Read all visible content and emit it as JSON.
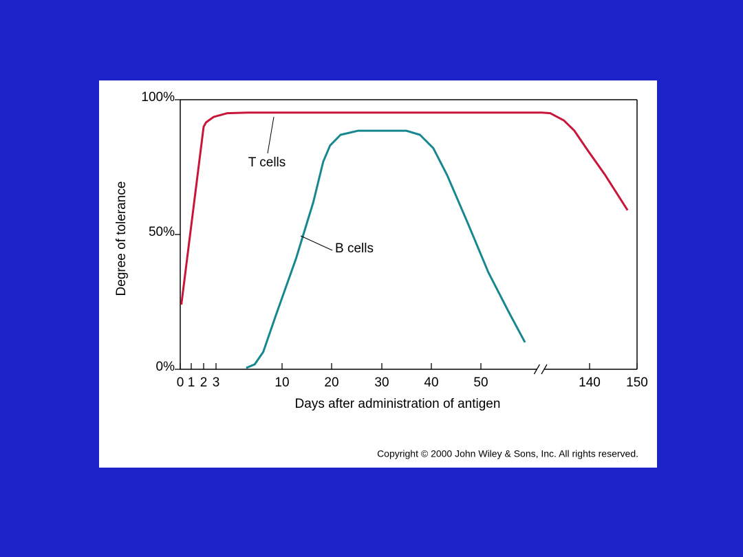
{
  "chart_data": {
    "type": "line",
    "y_axis_label": "Degree of tolerance",
    "x_axis_label": "Days after administration of antigen",
    "copyright": "Copyright © 2000 John Wiley & Sons, Inc.  All rights reserved.",
    "xlim": [
      0,
      150
    ],
    "ylim": [
      0,
      100
    ],
    "xticks": [
      0,
      1,
      2,
      3,
      10,
      20,
      30,
      40,
      50,
      140,
      150
    ],
    "yticks": [
      {
        "value": 0,
        "label": "0%"
      },
      {
        "value": 50,
        "label": "50%"
      },
      {
        "value": 100,
        "label": "100%"
      }
    ],
    "xbreak": [
      62,
      130
    ],
    "series": [
      {
        "name": "T cells",
        "color": "#c8163a",
        "x": [
          0.1,
          2,
          2.2,
          2.8,
          4.2,
          6.4,
          60,
          130,
          131.7,
          134.6,
          136.8,
          139.7,
          143.3,
          148
        ],
        "values": [
          24,
          90,
          91.6,
          93.6,
          95,
          95.2,
          95.2,
          95.2,
          95,
          92.3,
          88.5,
          81,
          72,
          59
        ]
      },
      {
        "name": "B cells",
        "color": "#17878f",
        "x": [
          6.2,
          7.1,
          8,
          9.3,
          12.8,
          16.3,
          18.3,
          19.7,
          21.8,
          25.3,
          34.9,
          37.7,
          40.4,
          43.2,
          47.4,
          51.5,
          55.7,
          58.9
        ],
        "values": [
          0.5,
          1.8,
          6.4,
          19.6,
          41,
          62,
          77,
          83,
          87,
          88.5,
          88.5,
          87,
          82,
          72,
          54,
          36,
          21,
          10
        ]
      }
    ]
  }
}
